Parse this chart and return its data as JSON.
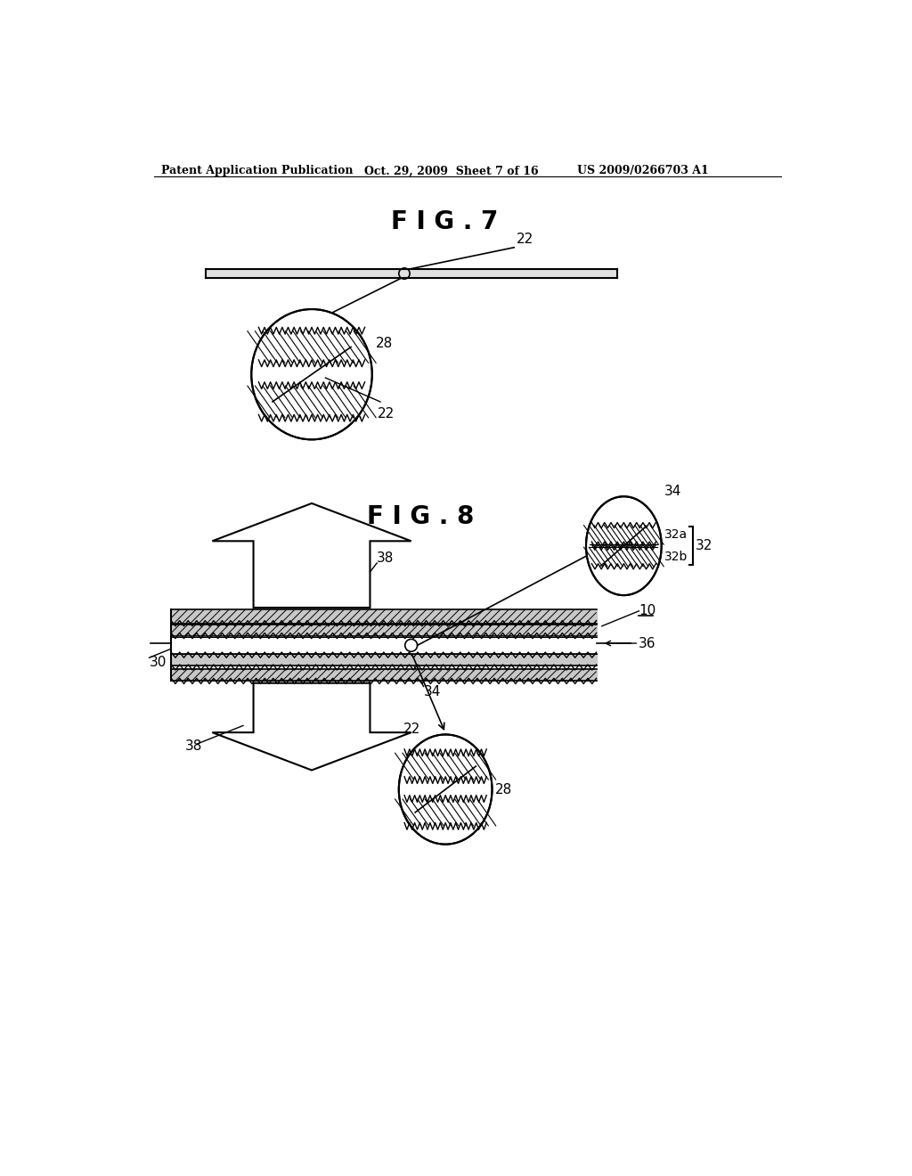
{
  "header_left": "Patent Application Publication",
  "header_mid": "Oct. 29, 2009  Sheet 7 of 16",
  "header_right": "US 2009/0266703 A1",
  "fig7_title": "F I G . 7",
  "fig8_title": "F I G . 8",
  "bg_color": "#ffffff",
  "line_color": "#000000"
}
